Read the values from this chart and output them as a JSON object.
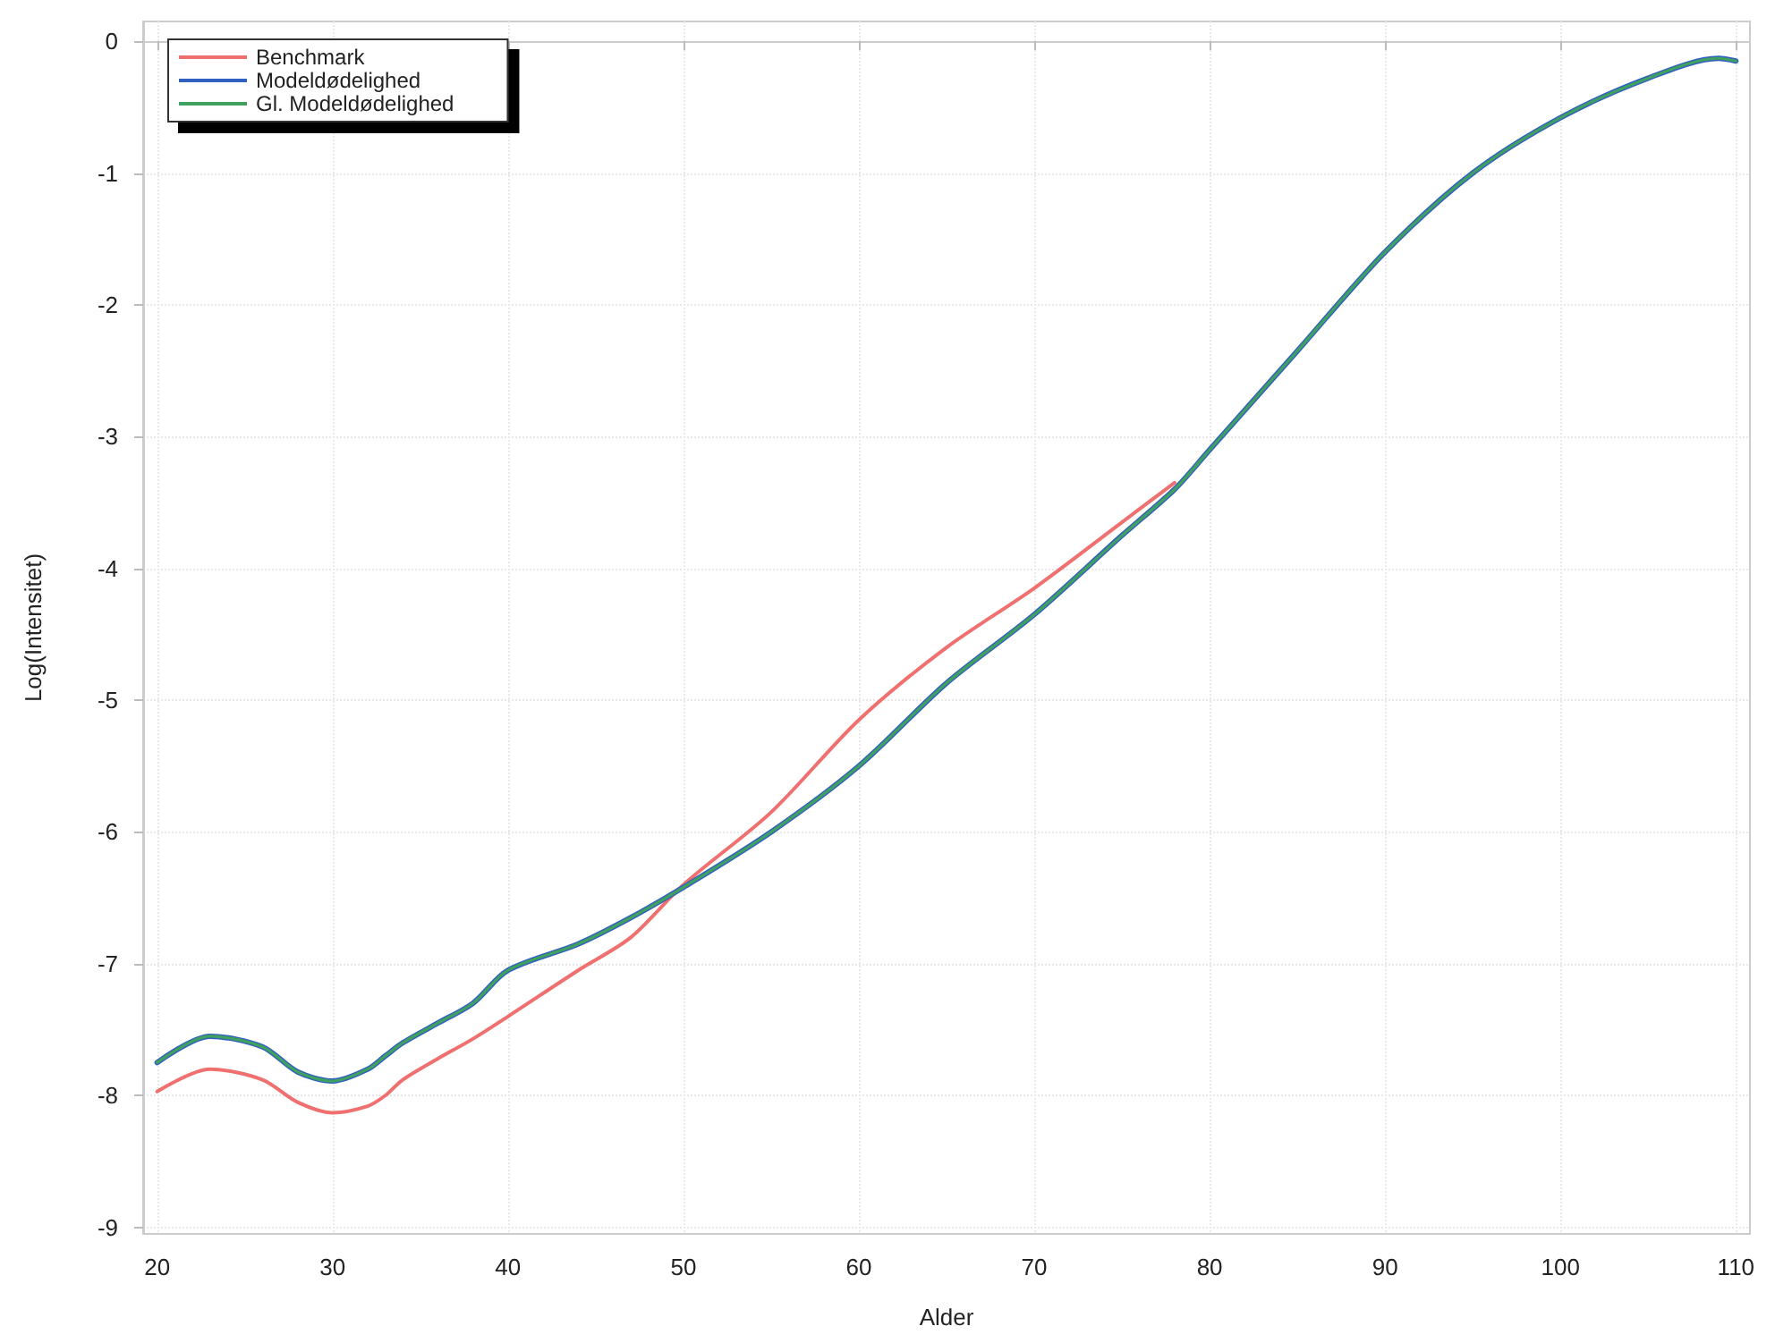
{
  "chart_data": {
    "type": "line",
    "xlabel": "Alder",
    "ylabel": "Log(Intensitet)",
    "x": [
      20,
      23,
      26,
      28,
      30,
      32,
      33,
      34,
      36,
      38,
      40,
      44,
      47,
      50,
      55,
      60,
      65,
      70,
      75,
      78,
      80,
      85,
      90,
      95,
      100,
      105,
      109,
      110
    ],
    "series": [
      {
        "name": "Benchmark",
        "color": "#f07070",
        "values": [
          -7.97,
          -7.8,
          -7.88,
          -8.05,
          -8.13,
          -8.08,
          -8.0,
          -7.88,
          -7.72,
          -7.57,
          -7.4,
          -7.05,
          -6.8,
          -6.4,
          -5.85,
          -5.15,
          -4.6,
          -4.15,
          -3.65,
          -3.35,
          null,
          null,
          null,
          null,
          null,
          null,
          null,
          null
        ]
      },
      {
        "name": "Modeldødelighed",
        "color": "#3060c0",
        "values": [
          -7.75,
          -7.55,
          -7.63,
          -7.82,
          -7.89,
          -7.8,
          -7.7,
          -7.6,
          -7.45,
          -7.3,
          -7.05,
          -6.85,
          -6.65,
          -6.42,
          -6.0,
          -5.5,
          -4.87,
          -4.35,
          -3.75,
          -3.4,
          -3.1,
          -2.35,
          -1.6,
          -1.0,
          -0.58,
          -0.28,
          -0.13,
          -0.15
        ]
      },
      {
        "name": "Gl. Modeldødelighed",
        "color": "#40a060",
        "values": [
          -7.75,
          -7.55,
          -7.63,
          -7.82,
          -7.89,
          -7.8,
          -7.7,
          -7.6,
          -7.45,
          -7.3,
          -7.05,
          -6.85,
          -6.65,
          -6.42,
          -6.0,
          -5.5,
          -4.87,
          -4.35,
          -3.75,
          -3.4,
          -3.1,
          -2.35,
          -1.6,
          -1.0,
          -0.58,
          -0.28,
          -0.13,
          -0.15
        ]
      }
    ],
    "xlim": [
      19.2,
      110.8
    ],
    "xticks": [
      20,
      30,
      40,
      50,
      60,
      70,
      80,
      90,
      100,
      110
    ],
    "ylim": [
      -9.05,
      0.15
    ],
    "yticks": [
      -9,
      -8,
      -7,
      -6,
      -5,
      -4,
      -3,
      -2,
      -1,
      0
    ],
    "grid": true,
    "legend": "top left",
    "marker": "none",
    "line_style": "solid"
  }
}
